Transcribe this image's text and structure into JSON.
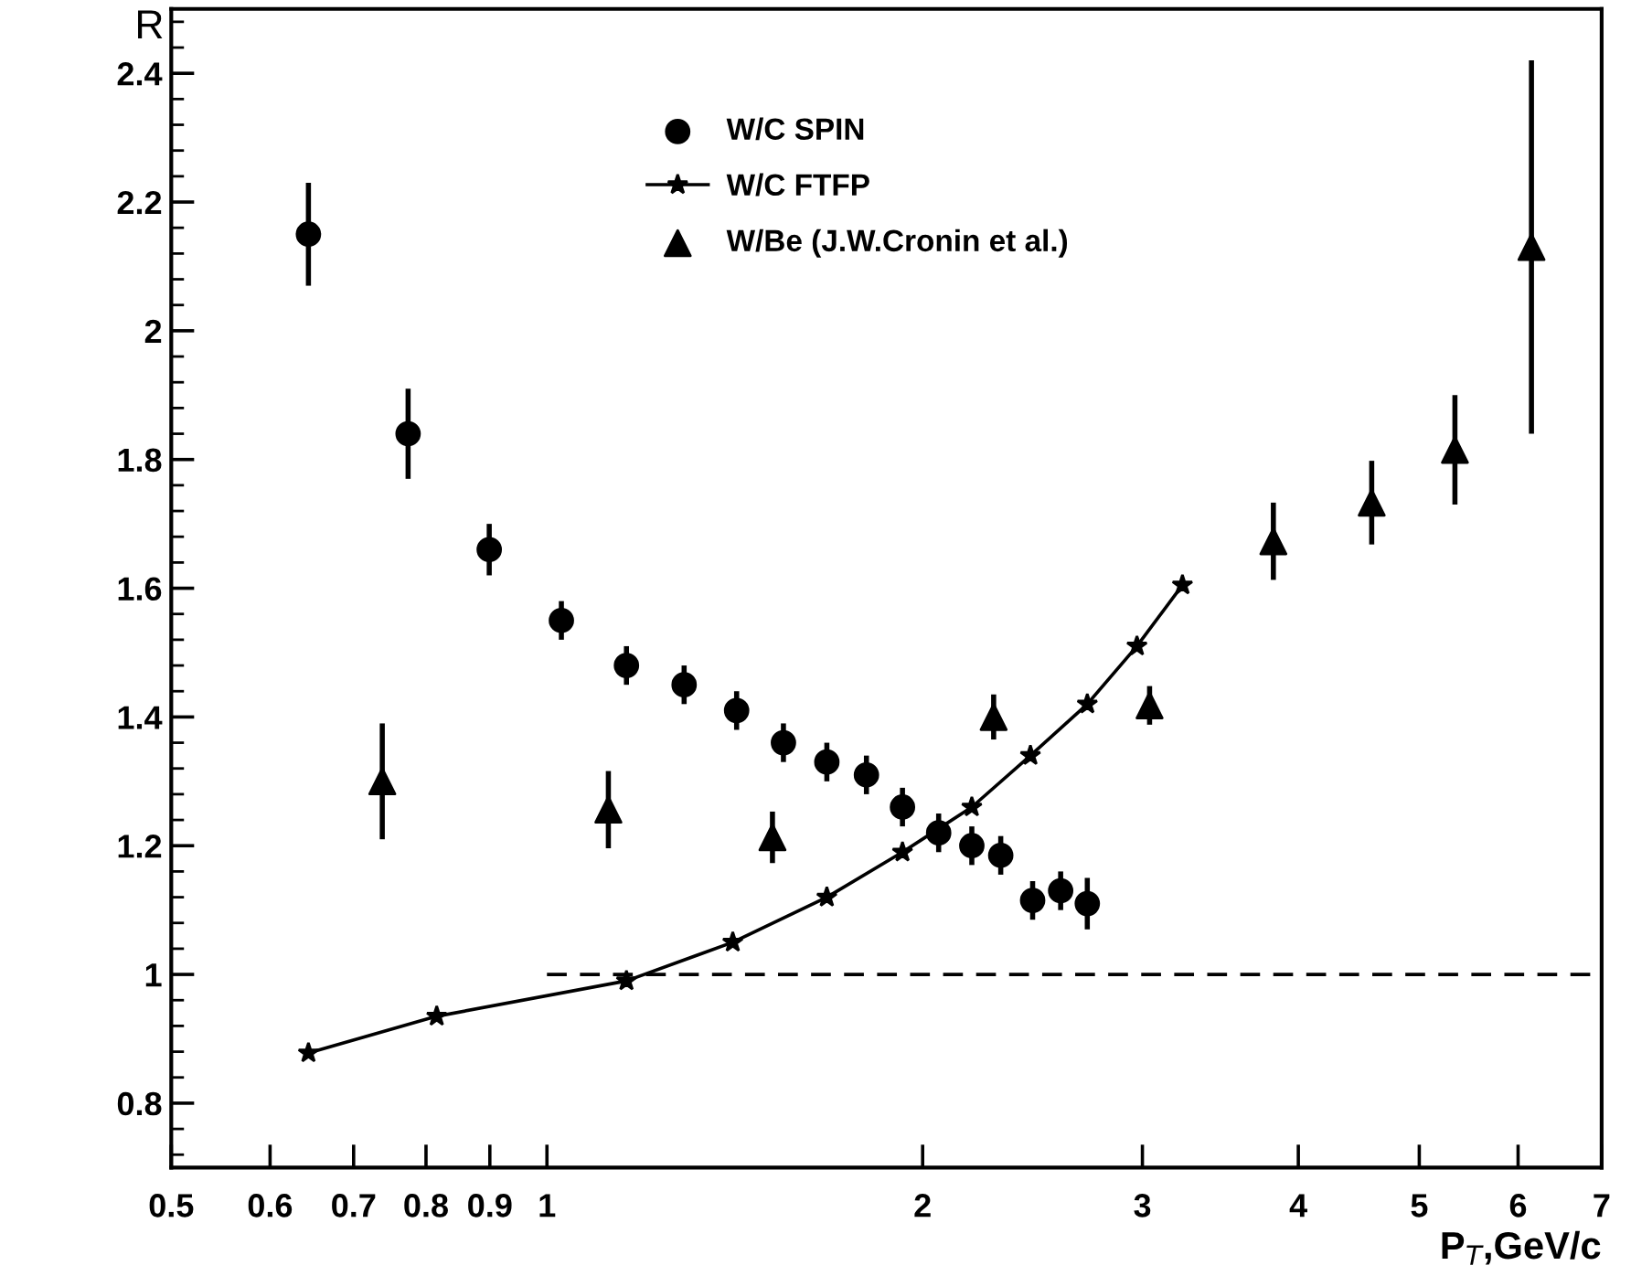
{
  "chart_data": {
    "type": "scatter",
    "xlabel": "P$_{T}$,GeV/c",
    "ylabel": "R",
    "log": "x",
    "xlim": [
      0.5,
      7
    ],
    "ylim": [
      0.7,
      2.5
    ],
    "xticks": [
      0.5,
      0.6,
      0.7,
      0.8,
      0.9,
      1,
      2,
      3,
      4,
      5,
      6,
      7
    ],
    "yticks": [
      0.8,
      1,
      1.2,
      1.4,
      1.6,
      1.8,
      2,
      2.2,
      2.4
    ],
    "grid": false,
    "legend": "top",
    "series": [
      {
        "name": "W/C SPIN",
        "marker": "circle",
        "color": "#000000",
        "x": [
          0.644,
          0.774,
          0.899,
          1.027,
          1.158,
          1.288,
          1.419,
          1.547,
          1.676,
          1.803,
          1.927,
          2.06,
          2.19,
          2.31,
          2.45,
          2.58,
          2.71
        ],
        "values": [
          2.15,
          1.84,
          1.66,
          1.55,
          1.48,
          1.45,
          1.41,
          1.36,
          1.33,
          1.31,
          1.26,
          1.22,
          1.2,
          1.185,
          1.115,
          1.13,
          1.11
        ],
        "errors": [
          0.08,
          0.07,
          0.04,
          0.03,
          0.03,
          0.03,
          0.03,
          0.03,
          0.03,
          0.03,
          0.03,
          0.03,
          0.03,
          0.03,
          0.03,
          0.03,
          0.04
        ]
      },
      {
        "name": "W/C FTFP",
        "type": "line",
        "marker": "star",
        "line_style": "solid",
        "color": "#000000",
        "x": [
          0.644,
          0.816,
          1.158,
          1.409,
          1.676,
          1.927,
          2.19,
          2.44,
          2.71,
          2.97,
          3.23
        ],
        "values": [
          0.878,
          0.935,
          0.99,
          1.05,
          1.12,
          1.19,
          1.26,
          1.34,
          1.42,
          1.51,
          1.605
        ]
      },
      {
        "name": "W/Be (J.W.Cronin et al.)",
        "marker": "triangle",
        "color": "#000000",
        "x": [
          0.738,
          1.12,
          1.516,
          2.28,
          3.04,
          3.82,
          4.58,
          5.34,
          6.15
        ],
        "values": [
          1.3,
          1.256,
          1.213,
          1.4,
          1.418,
          1.673,
          1.733,
          1.815,
          2.13
        ],
        "errors": [
          0.09,
          0.06,
          0.04,
          0.035,
          0.03,
          0.06,
          0.065,
          0.085,
          [
            1.84,
            2.42
          ]
        ]
      },
      {
        "type": "line",
        "marker": "none",
        "line_style": "dashed",
        "color": "#000000",
        "x": [
          1,
          7
        ],
        "values": [
          1,
          1
        ]
      }
    ]
  }
}
